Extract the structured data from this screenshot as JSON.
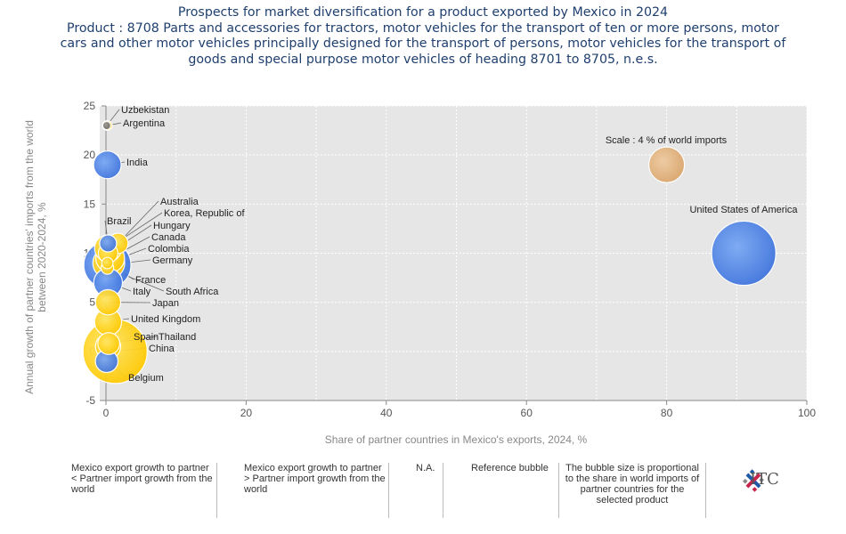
{
  "title_lines": [
    "Prospects for market diversification for a product exported by Mexico in 2024",
    "Product : 8708 Parts and accessories for tractors, motor vehicles for the transport of ten or more persons, motor",
    "cars and other motor vehicles principally designed for the transport of persons, motor vehicles for the transport of",
    "goods and special purpose motor vehicles of heading 8701 to 8705, n.e.s."
  ],
  "colors": {
    "yellow": "#ffd000",
    "blue": "#4f86e8",
    "gray": "#777777",
    "reference": "#e0b07a"
  },
  "chart_data": {
    "type": "scatter",
    "xlabel": "Share of partner countries in Mexico's exports, 2024, %",
    "ylabel": "Annual growth of partner countries' imports from the world between 2020-2024, %",
    "xlim": [
      0,
      100
    ],
    "ylim": [
      -5,
      25
    ],
    "x_ticks": [
      "0",
      "20",
      "40",
      "60",
      "80",
      "100"
    ],
    "y_ticks": [
      "-5",
      "0",
      "5",
      "10",
      "15",
      "20",
      "25"
    ],
    "reference_label": "Scale : 4 % of world imports",
    "points": [
      {
        "name": "Uzbekistan",
        "x": 0.1,
        "y": 23,
        "group": "gray",
        "size": 0.1
      },
      {
        "name": "Argentina",
        "x": 0.2,
        "y": 23,
        "group": "yellow",
        "size": 0.3
      },
      {
        "name": "India",
        "x": 0.2,
        "y": 19,
        "group": "blue",
        "size": 2.4
      },
      {
        "name": "United States of America",
        "x": 91,
        "y": 10,
        "group": "blue",
        "size": 13
      },
      {
        "name": "Reference bubble",
        "x": 80,
        "y": 19,
        "group": "reference",
        "size": 4
      },
      {
        "name": "Australia",
        "x": 1.7,
        "y": 11,
        "group": "yellow",
        "size": 1.3
      },
      {
        "name": "Brazil",
        "x": 0.3,
        "y": 11,
        "group": "blue",
        "size": 0.9
      },
      {
        "name": "Korea, Republic of",
        "x": 0.3,
        "y": 10.5,
        "group": "yellow",
        "size": 2.3
      },
      {
        "name": "Hungary",
        "x": 0.3,
        "y": 10,
        "group": "yellow",
        "size": 1.2
      },
      {
        "name": "Canada",
        "x": 0.6,
        "y": 9.5,
        "group": "yellow",
        "size": 2.6
      },
      {
        "name": "Colombia",
        "x": 0.2,
        "y": 9.0,
        "group": "yellow",
        "size": 0.4
      },
      {
        "name": "Germany",
        "x": 0.2,
        "y": 8.8,
        "group": "blue",
        "size": 7.0
      },
      {
        "name": "France",
        "x": 0.4,
        "y": 9,
        "group": "yellow",
        "size": 3.2
      },
      {
        "name": "South Africa",
        "x": 0.2,
        "y": 8.5,
        "group": "yellow",
        "size": 0.5
      },
      {
        "name": "Italy",
        "x": 0.3,
        "y": 7,
        "group": "blue",
        "size": 2.6
      },
      {
        "name": "Japan",
        "x": 0.3,
        "y": 5,
        "group": "yellow",
        "size": 2.0
      },
      {
        "name": "United Kingdom",
        "x": 0.3,
        "y": 3,
        "group": "yellow",
        "size": 2.3
      },
      {
        "name": "Thailand",
        "x": 0.4,
        "y": 0.8,
        "group": "yellow",
        "size": 1.5
      },
      {
        "name": "Spain",
        "x": 0.3,
        "y": 0.5,
        "group": "yellow",
        "size": 2.0
      },
      {
        "name": "China",
        "x": 1.3,
        "y": 0,
        "group": "yellow",
        "size": 13
      },
      {
        "name": "Belgium",
        "x": 0.1,
        "y": -1,
        "group": "blue",
        "size": 1.6
      }
    ]
  },
  "legend": {
    "yellow_label": "Mexico export growth to partner < Partner import growth from the world",
    "blue_label": "Mexico export growth to partner > Partner import growth from the world",
    "na_label": "N.A.",
    "reference_label": "Reference bubble",
    "size_note": "The bubble size is proportional to the share in world imports of partner countries for the selected product"
  },
  "logo": {
    "text": "ITC"
  }
}
